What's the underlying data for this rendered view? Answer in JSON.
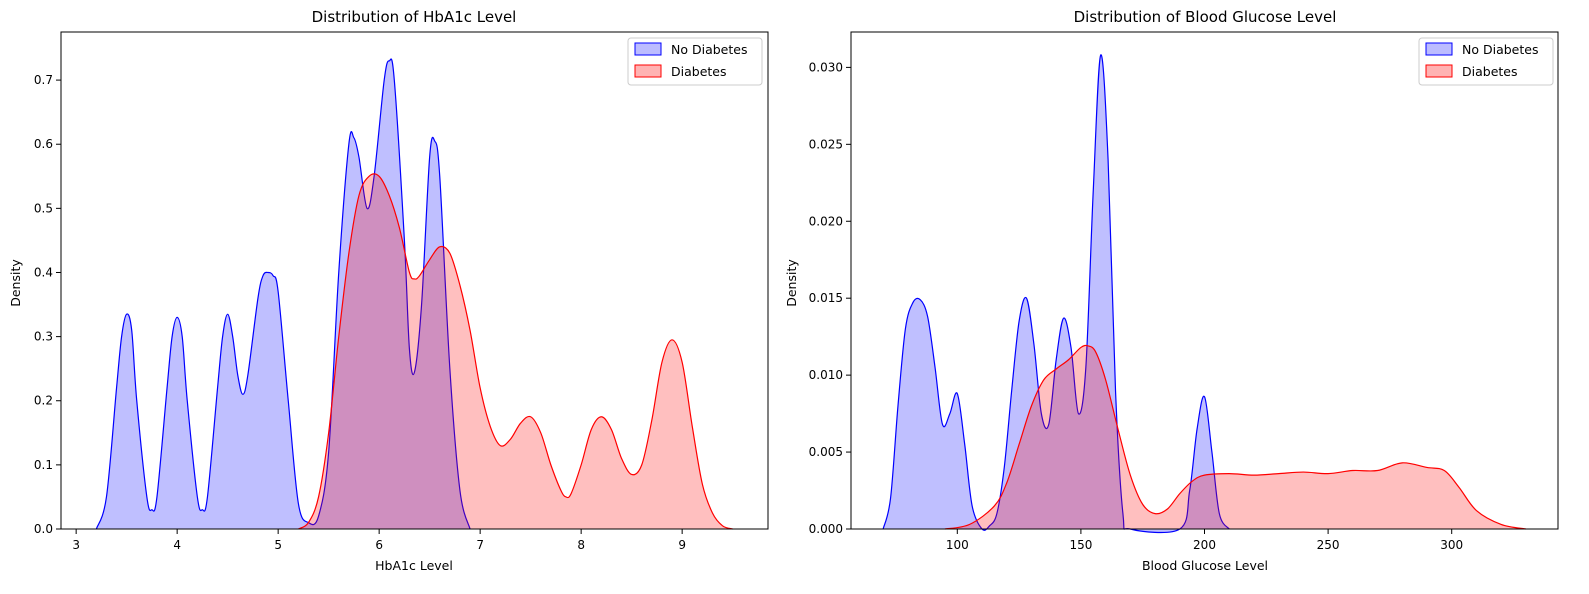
{
  "chart_data": [
    {
      "type": "area",
      "title": "Distribution of HbA1c Level",
      "xlabel": "HbA1c Level",
      "ylabel": "Density",
      "xlim": [
        2.85,
        9.85
      ],
      "ylim": [
        0,
        0.775
      ],
      "xticks": [
        3,
        4,
        5,
        6,
        7,
        8,
        9
      ],
      "xtick_labels": [
        "3",
        "4",
        "5",
        "6",
        "7",
        "8",
        "9"
      ],
      "yticks": [
        0.0,
        0.1,
        0.2,
        0.3,
        0.4,
        0.5,
        0.6,
        0.7
      ],
      "ytick_labels": [
        "0.0",
        "0.1",
        "0.2",
        "0.3",
        "0.4",
        "0.5",
        "0.6",
        "0.7"
      ],
      "grid": false,
      "legend_position": "top-right",
      "series": [
        {
          "name": "No Diabetes",
          "color": "#0000ff",
          "fill": "#bcbcff",
          "x": [
            3.2,
            3.3,
            3.4,
            3.45,
            3.5,
            3.55,
            3.6,
            3.7,
            3.75,
            3.8,
            3.9,
            3.95,
            4.0,
            4.05,
            4.1,
            4.2,
            4.25,
            4.3,
            4.4,
            4.45,
            4.5,
            4.55,
            4.6,
            4.65,
            4.7,
            4.8,
            4.85,
            4.9,
            4.95,
            5.0,
            5.1,
            5.2,
            5.3,
            5.4,
            5.5,
            5.6,
            5.7,
            5.75,
            5.8,
            5.88,
            5.95,
            6.05,
            6.1,
            6.15,
            6.25,
            6.3,
            6.35,
            6.42,
            6.5,
            6.55,
            6.6,
            6.7,
            6.8,
            6.9
          ],
          "y": [
            0.0,
            0.05,
            0.22,
            0.3,
            0.335,
            0.31,
            0.2,
            0.05,
            0.03,
            0.05,
            0.22,
            0.3,
            0.33,
            0.3,
            0.2,
            0.05,
            0.03,
            0.05,
            0.22,
            0.3,
            0.335,
            0.3,
            0.24,
            0.21,
            0.24,
            0.36,
            0.395,
            0.4,
            0.395,
            0.37,
            0.2,
            0.04,
            0.01,
            0.02,
            0.12,
            0.4,
            0.6,
            0.61,
            0.58,
            0.5,
            0.55,
            0.7,
            0.73,
            0.7,
            0.45,
            0.28,
            0.245,
            0.35,
            0.58,
            0.605,
            0.55,
            0.25,
            0.06,
            0.0
          ]
        },
        {
          "name": "Diabetes",
          "color": "#ff0000",
          "fill": "#ffb3b3",
          "x": [
            5.2,
            5.3,
            5.4,
            5.5,
            5.6,
            5.7,
            5.8,
            5.9,
            6.0,
            6.1,
            6.2,
            6.3,
            6.35,
            6.4,
            6.5,
            6.6,
            6.7,
            6.8,
            6.9,
            7.0,
            7.1,
            7.2,
            7.3,
            7.4,
            7.5,
            7.6,
            7.7,
            7.8,
            7.85,
            7.9,
            8.0,
            8.1,
            8.2,
            8.3,
            8.4,
            8.5,
            8.6,
            8.7,
            8.8,
            8.9,
            9.0,
            9.1,
            9.2,
            9.3,
            9.4,
            9.5
          ],
          "y": [
            0.0,
            0.01,
            0.05,
            0.15,
            0.3,
            0.43,
            0.52,
            0.55,
            0.55,
            0.52,
            0.47,
            0.4,
            0.39,
            0.395,
            0.42,
            0.44,
            0.43,
            0.38,
            0.31,
            0.22,
            0.16,
            0.13,
            0.14,
            0.165,
            0.175,
            0.15,
            0.1,
            0.06,
            0.05,
            0.055,
            0.1,
            0.155,
            0.175,
            0.155,
            0.11,
            0.085,
            0.1,
            0.17,
            0.26,
            0.295,
            0.26,
            0.16,
            0.07,
            0.025,
            0.005,
            0.0
          ]
        }
      ]
    },
    {
      "type": "area",
      "title": "Distribution of Blood Glucose Level",
      "xlabel": "Blood Glucose Level",
      "ylabel": "Density",
      "xlim": [
        57,
        343
      ],
      "ylim": [
        0,
        0.0323
      ],
      "xticks": [
        100,
        150,
        200,
        250,
        300
      ],
      "xtick_labels": [
        "100",
        "150",
        "200",
        "250",
        "300"
      ],
      "yticks": [
        0.0,
        0.005,
        0.01,
        0.015,
        0.02,
        0.025,
        0.03
      ],
      "ytick_labels": [
        "0.000",
        "0.005",
        "0.010",
        "0.015",
        "0.020",
        "0.025",
        "0.030"
      ],
      "grid": false,
      "legend_position": "top-right",
      "series": [
        {
          "name": "No Diabetes",
          "color": "#0000ff",
          "fill": "#bcbcff",
          "x": [
            70,
            73,
            76,
            79,
            82,
            85,
            88,
            91,
            94,
            97,
            100,
            103,
            106,
            110,
            113,
            116,
            119,
            122,
            125,
            128,
            131,
            134,
            137,
            140,
            143,
            146,
            149,
            152,
            155,
            158,
            161,
            164,
            167,
            170,
            190,
            194,
            197,
            200,
            203,
            206,
            210
          ],
          "y": [
            0.0,
            0.002,
            0.008,
            0.013,
            0.0147,
            0.0149,
            0.0138,
            0.0105,
            0.0068,
            0.0075,
            0.0088,
            0.0055,
            0.0015,
            0.0,
            0.0002,
            0.001,
            0.004,
            0.009,
            0.0135,
            0.015,
            0.012,
            0.0075,
            0.0068,
            0.011,
            0.0137,
            0.0118,
            0.0075,
            0.0105,
            0.022,
            0.0308,
            0.024,
            0.009,
            0.001,
            0.0,
            0.0,
            0.0025,
            0.0065,
            0.0086,
            0.005,
            0.001,
            0.0
          ]
        },
        {
          "name": "Diabetes",
          "color": "#ff0000",
          "fill": "#ffb3b3",
          "x": [
            95,
            105,
            115,
            120,
            125,
            130,
            135,
            140,
            145,
            150,
            153,
            156,
            160,
            165,
            170,
            175,
            180,
            185,
            190,
            195,
            200,
            210,
            220,
            230,
            240,
            250,
            260,
            270,
            280,
            290,
            297,
            303,
            310,
            320,
            330
          ],
          "y": [
            0.0,
            0.0003,
            0.0015,
            0.003,
            0.0055,
            0.008,
            0.0097,
            0.0104,
            0.011,
            0.0118,
            0.0119,
            0.0115,
            0.0097,
            0.0065,
            0.0035,
            0.0016,
            0.001,
            0.0013,
            0.0023,
            0.0031,
            0.0035,
            0.0036,
            0.0035,
            0.0036,
            0.0037,
            0.0036,
            0.0038,
            0.0038,
            0.0043,
            0.004,
            0.0038,
            0.0027,
            0.0012,
            0.0003,
            0.0
          ]
        }
      ]
    }
  ]
}
